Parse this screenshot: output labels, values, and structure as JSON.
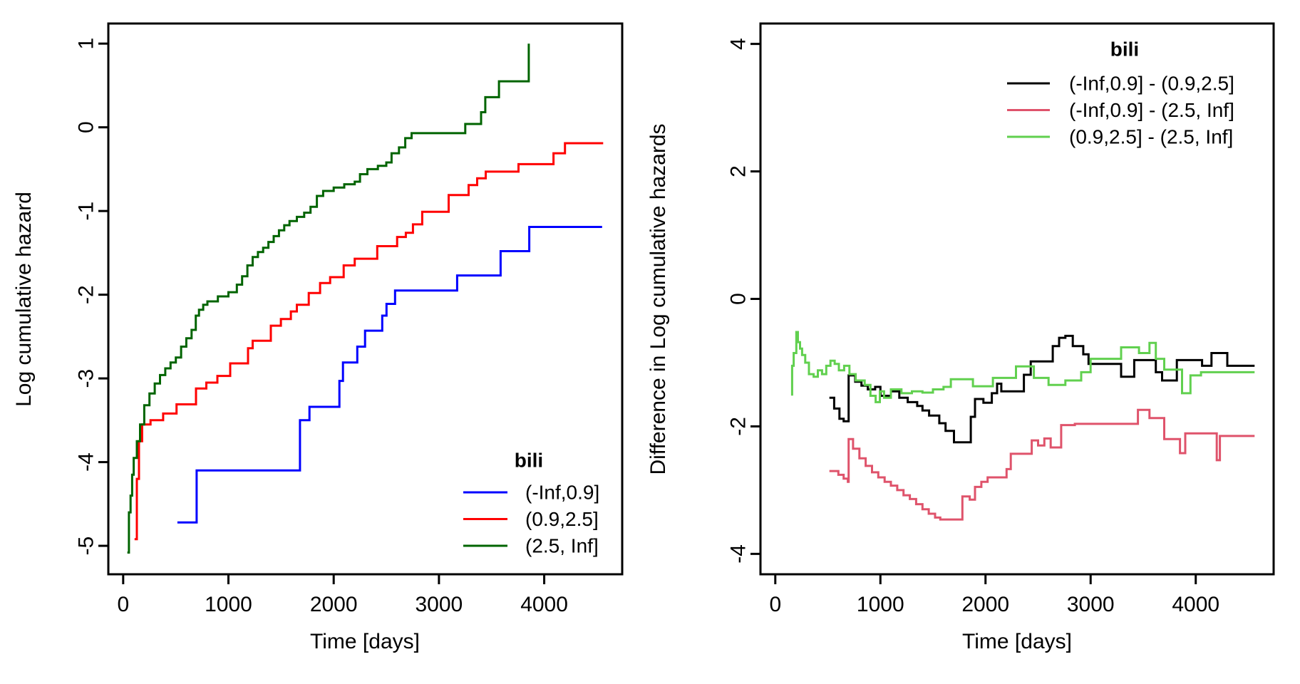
{
  "figure": {
    "background": "#ffffff",
    "text_color": "#000000"
  },
  "chart_data": [
    {
      "type": "line",
      "style": "step-post",
      "panel": "left",
      "title": "",
      "xlabel": "Time [days]",
      "ylabel": "Log cumulative hazard",
      "xlim": [
        -141,
        4741
      ],
      "ylim": [
        -5.34,
        1.24
      ],
      "xticks": [
        0,
        1000,
        2000,
        3000,
        4000
      ],
      "yticks": [
        1,
        0,
        -1,
        -2,
        -3,
        -4,
        -5
      ],
      "grid": false,
      "legend": {
        "title": "bili",
        "position": "bottom-right",
        "entries": [
          {
            "label": "(-Inf,0.9]",
            "color": "#0000FF"
          },
          {
            "label": "(0.9,2.5]",
            "color": "#FF0000"
          },
          {
            "label": "(2.5, Inf]",
            "color": "#006400"
          }
        ]
      },
      "series": [
        {
          "name": "(-Inf,0.9]",
          "color": "#0000FF",
          "points": [
            [
              515,
              -4.72
            ],
            [
              698,
              -4.1
            ],
            [
              1680,
              -3.5
            ],
            [
              1770,
              -3.34
            ],
            [
              2054,
              -3.03
            ],
            [
              2088,
              -2.81
            ],
            [
              2224,
              -2.62
            ],
            [
              2298,
              -2.43
            ],
            [
              2461,
              -2.25
            ],
            [
              2502,
              -2.11
            ],
            [
              2583,
              -1.95
            ],
            [
              3173,
              -1.77
            ],
            [
              3586,
              -1.48
            ],
            [
              3858,
              -1.19
            ],
            [
              4550,
              -1.19
            ]
          ]
        },
        {
          "name": "(0.9,2.5]",
          "color": "#FF0000",
          "points": [
            [
              108,
              -4.92
            ],
            [
              130,
              -4.2
            ],
            [
              150,
              -3.75
            ],
            [
              180,
              -3.55
            ],
            [
              260,
              -3.5
            ],
            [
              380,
              -3.42
            ],
            [
              507,
              -3.31
            ],
            [
              692,
              -3.12
            ],
            [
              790,
              -3.05
            ],
            [
              895,
              -2.97
            ],
            [
              1017,
              -2.82
            ],
            [
              1186,
              -2.64
            ],
            [
              1230,
              -2.55
            ],
            [
              1403,
              -2.37
            ],
            [
              1498,
              -2.29
            ],
            [
              1593,
              -2.2
            ],
            [
              1650,
              -2.12
            ],
            [
              1763,
              -1.98
            ],
            [
              1871,
              -1.86
            ],
            [
              1966,
              -1.79
            ],
            [
              2095,
              -1.65
            ],
            [
              2200,
              -1.57
            ],
            [
              2414,
              -1.42
            ],
            [
              2603,
              -1.31
            ],
            [
              2685,
              -1.26
            ],
            [
              2753,
              -1.16
            ],
            [
              2841,
              -1.01
            ],
            [
              3092,
              -0.81
            ],
            [
              3282,
              -0.69
            ],
            [
              3363,
              -0.61
            ],
            [
              3444,
              -0.53
            ],
            [
              3756,
              -0.44
            ],
            [
              4088,
              -0.31
            ],
            [
              4197,
              -0.19
            ],
            [
              4560,
              -0.19
            ]
          ]
        },
        {
          "name": "(2.5, Inf]",
          "color": "#006400",
          "points": [
            [
              40,
              -5.08
            ],
            [
              55,
              -4.6
            ],
            [
              70,
              -4.4
            ],
            [
              85,
              -4.15
            ],
            [
              100,
              -3.95
            ],
            [
              130,
              -3.75
            ],
            [
              160,
              -3.55
            ],
            [
              200,
              -3.32
            ],
            [
              250,
              -3.18
            ],
            [
              300,
              -3.06
            ],
            [
              350,
              -2.96
            ],
            [
              400,
              -2.88
            ],
            [
              450,
              -2.81
            ],
            [
              500,
              -2.75
            ],
            [
              550,
              -2.62
            ],
            [
              600,
              -2.52
            ],
            [
              650,
              -2.42
            ],
            [
              690,
              -2.25
            ],
            [
              720,
              -2.18
            ],
            [
              760,
              -2.12
            ],
            [
              800,
              -2.08
            ],
            [
              900,
              -2.02
            ],
            [
              1000,
              -1.97
            ],
            [
              1080,
              -1.88
            ],
            [
              1130,
              -1.78
            ],
            [
              1180,
              -1.65
            ],
            [
              1230,
              -1.55
            ],
            [
              1280,
              -1.49
            ],
            [
              1330,
              -1.44
            ],
            [
              1380,
              -1.37
            ],
            [
              1430,
              -1.3
            ],
            [
              1480,
              -1.23
            ],
            [
              1530,
              -1.17
            ],
            [
              1580,
              -1.12
            ],
            [
              1650,
              -1.07
            ],
            [
              1720,
              -1.02
            ],
            [
              1780,
              -0.95
            ],
            [
              1840,
              -0.82
            ],
            [
              1900,
              -0.76
            ],
            [
              2000,
              -0.72
            ],
            [
              2100,
              -0.68
            ],
            [
              2200,
              -0.65
            ],
            [
              2250,
              -0.56
            ],
            [
              2320,
              -0.5
            ],
            [
              2420,
              -0.46
            ],
            [
              2500,
              -0.42
            ],
            [
              2550,
              -0.31
            ],
            [
              2620,
              -0.24
            ],
            [
              2680,
              -0.13
            ],
            [
              2740,
              -0.07
            ],
            [
              3250,
              0.04
            ],
            [
              3400,
              0.18
            ],
            [
              3440,
              0.36
            ],
            [
              3570,
              0.55
            ],
            [
              3853,
              1.0
            ]
          ]
        }
      ]
    },
    {
      "type": "line",
      "style": "step-post",
      "panel": "right",
      "title": "",
      "xlabel": "Time [days]",
      "ylabel": "Difference in Log cumulative hazards",
      "xlim": [
        -141,
        4741
      ],
      "ylim": [
        -4.32,
        4.32
      ],
      "xticks": [
        0,
        1000,
        2000,
        3000,
        4000
      ],
      "yticks": [
        4,
        2,
        0,
        -2,
        -4
      ],
      "grid": false,
      "legend": {
        "title": "bili",
        "position": "top-right",
        "entries": [
          {
            "label": "(-Inf,0.9] - (0.9,2.5]",
            "color": "#000000"
          },
          {
            "label": "(-Inf,0.9] - (2.5, Inf]",
            "color": "#DF536B"
          },
          {
            "label": "(0.9,2.5] - (2.5, Inf]",
            "color": "#61D04F"
          }
        ]
      },
      "series": [
        {
          "name": "(-Inf,0.9] - (0.9,2.5]",
          "color": "#000000",
          "points": [
            [
              515,
              -1.55
            ],
            [
              560,
              -1.72
            ],
            [
              610,
              -1.88
            ],
            [
              650,
              -1.92
            ],
            [
              698,
              -1.2
            ],
            [
              760,
              -1.3
            ],
            [
              820,
              -1.36
            ],
            [
              880,
              -1.42
            ],
            [
              950,
              -1.38
            ],
            [
              1000,
              -1.52
            ],
            [
              1100,
              -1.45
            ],
            [
              1180,
              -1.55
            ],
            [
              1260,
              -1.62
            ],
            [
              1350,
              -1.68
            ],
            [
              1400,
              -1.75
            ],
            [
              1463,
              -1.83
            ],
            [
              1560,
              -1.95
            ],
            [
              1620,
              -2.07
            ],
            [
              1700,
              -2.25
            ],
            [
              1860,
              -1.85
            ],
            [
              1900,
              -1.57
            ],
            [
              1980,
              -1.63
            ],
            [
              2060,
              -1.48
            ],
            [
              2110,
              -1.33
            ],
            [
              2150,
              -1.45
            ],
            [
              2365,
              -1.19
            ],
            [
              2430,
              -0.98
            ],
            [
              2640,
              -0.74
            ],
            [
              2700,
              -0.61
            ],
            [
              2760,
              -0.58
            ],
            [
              2830,
              -0.74
            ],
            [
              2930,
              -0.87
            ],
            [
              2980,
              -1.02
            ],
            [
              3290,
              -1.22
            ],
            [
              3415,
              -0.96
            ],
            [
              3620,
              -1.15
            ],
            [
              3680,
              -1.28
            ],
            [
              3820,
              -0.96
            ],
            [
              4060,
              -1.05
            ],
            [
              4150,
              -0.85
            ],
            [
              4300,
              -1.05
            ],
            [
              4560,
              -1.05
            ]
          ]
        },
        {
          "name": "(-Inf,0.9] - (2.5, Inf]",
          "color": "#DF536B",
          "points": [
            [
              515,
              -2.7
            ],
            [
              600,
              -2.76
            ],
            [
              650,
              -2.82
            ],
            [
              690,
              -2.87
            ],
            [
              698,
              -2.2
            ],
            [
              740,
              -2.35
            ],
            [
              800,
              -2.5
            ],
            [
              860,
              -2.62
            ],
            [
              920,
              -2.72
            ],
            [
              980,
              -2.8
            ],
            [
              1040,
              -2.87
            ],
            [
              1100,
              -2.93
            ],
            [
              1160,
              -3.0
            ],
            [
              1220,
              -3.08
            ],
            [
              1280,
              -3.14
            ],
            [
              1340,
              -3.22
            ],
            [
              1400,
              -3.3
            ],
            [
              1460,
              -3.37
            ],
            [
              1520,
              -3.43
            ],
            [
              1570,
              -3.46
            ],
            [
              1780,
              -3.1
            ],
            [
              1850,
              -3.15
            ],
            [
              1900,
              -2.95
            ],
            [
              1960,
              -2.87
            ],
            [
              2020,
              -2.8
            ],
            [
              2200,
              -2.67
            ],
            [
              2240,
              -2.43
            ],
            [
              2440,
              -2.22
            ],
            [
              2500,
              -2.3
            ],
            [
              2560,
              -2.19
            ],
            [
              2620,
              -2.33
            ],
            [
              2720,
              -1.98
            ],
            [
              2850,
              -1.96
            ],
            [
              3450,
              -1.74
            ],
            [
              3560,
              -1.87
            ],
            [
              3700,
              -2.2
            ],
            [
              3850,
              -2.42
            ],
            [
              3900,
              -2.11
            ],
            [
              4200,
              -2.53
            ],
            [
              4230,
              -2.15
            ],
            [
              4560,
              -2.15
            ]
          ]
        },
        {
          "name": "(0.9,2.5] - (2.5, Inf]",
          "color": "#61D04F",
          "points": [
            [
              150,
              -1.5
            ],
            [
              160,
              -1.05
            ],
            [
              175,
              -0.85
            ],
            [
              200,
              -0.52
            ],
            [
              215,
              -0.68
            ],
            [
              235,
              -0.78
            ],
            [
              255,
              -0.88
            ],
            [
              285,
              -1.0
            ],
            [
              320,
              -1.18
            ],
            [
              365,
              -1.22
            ],
            [
              405,
              -1.12
            ],
            [
              445,
              -1.18
            ],
            [
              485,
              -1.05
            ],
            [
              525,
              -0.97
            ],
            [
              565,
              -1.02
            ],
            [
              605,
              -1.12
            ],
            [
              655,
              -1.05
            ],
            [
              705,
              -1.18
            ],
            [
              765,
              -1.28
            ],
            [
              850,
              -1.35
            ],
            [
              905,
              -1.52
            ],
            [
              955,
              -1.62
            ],
            [
              995,
              -1.45
            ],
            [
              1035,
              -1.55
            ],
            [
              1100,
              -1.42
            ],
            [
              1200,
              -1.48
            ],
            [
              1300,
              -1.45
            ],
            [
              1400,
              -1.47
            ],
            [
              1500,
              -1.42
            ],
            [
              1600,
              -1.38
            ],
            [
              1670,
              -1.26
            ],
            [
              1880,
              -1.37
            ],
            [
              2070,
              -1.24
            ],
            [
              2290,
              -1.06
            ],
            [
              2460,
              -1.24
            ],
            [
              2600,
              -1.35
            ],
            [
              2760,
              -1.28
            ],
            [
              2910,
              -1.15
            ],
            [
              3000,
              -0.94
            ],
            [
              3290,
              -0.76
            ],
            [
              3460,
              -0.85
            ],
            [
              3560,
              -0.69
            ],
            [
              3620,
              -0.94
            ],
            [
              3700,
              -1.11
            ],
            [
              3870,
              -1.48
            ],
            [
              3950,
              -1.2
            ],
            [
              4050,
              -1.15
            ],
            [
              4560,
              -1.15
            ]
          ]
        }
      ]
    }
  ]
}
